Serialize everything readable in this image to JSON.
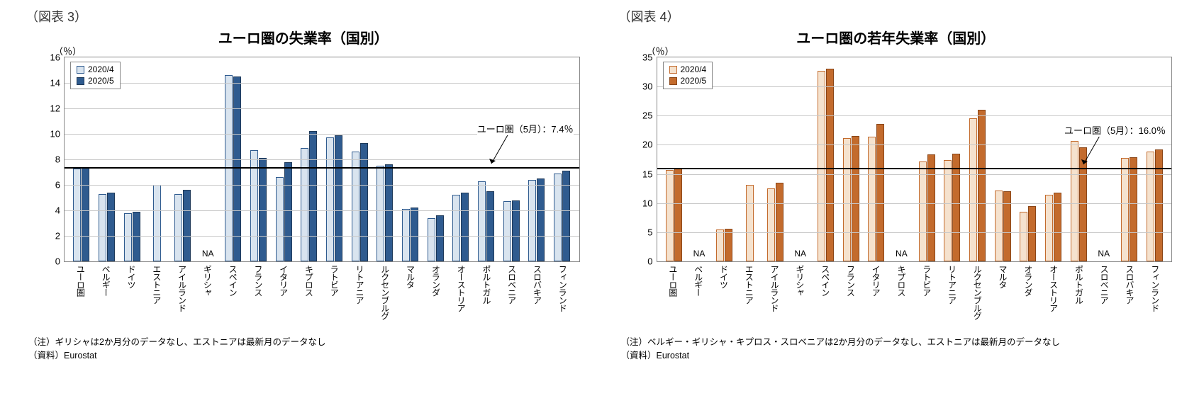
{
  "chart3": {
    "fig_label": "（図表 3）",
    "title": "ユーロ圏の失業率（国別）",
    "y_unit": "（％）",
    "type": "bar",
    "ylim": [
      0,
      16
    ],
    "ytick_step": 2,
    "yticks": [
      0,
      2,
      4,
      6,
      8,
      10,
      12,
      14,
      16
    ],
    "legend": [
      {
        "label": "2020/4",
        "fill": "#d9e4ef",
        "border": "#2f5b8f"
      },
      {
        "label": "2020/5",
        "fill": "#2f5b8f",
        "border": "#1f3a5a"
      }
    ],
    "reference": {
      "value": 7.4,
      "label": "ユーロ圏（5月）：7.4％"
    },
    "categories": [
      "ユーロ圏",
      "ベルギー",
      "ドイツ",
      "エストニア",
      "アイルランド",
      "ギリシャ",
      "スペイン",
      "フランス",
      "イタリア",
      "キプロス",
      "ラトビア",
      "リトアニア",
      "ルクセンブルグ",
      "マルタ",
      "オランダ",
      "オーストリア",
      "ポルトガル",
      "スロベニア",
      "スロバキア",
      "フィンランド"
    ],
    "series1": [
      7.3,
      5.3,
      3.8,
      6.0,
      5.3,
      null,
      14.6,
      8.7,
      6.6,
      8.9,
      9.7,
      8.6,
      7.5,
      4.1,
      3.4,
      5.2,
      6.3,
      4.7,
      6.4,
      6.9
    ],
    "series2": [
      7.4,
      5.4,
      3.9,
      null,
      5.6,
      null,
      14.5,
      8.1,
      7.8,
      10.2,
      9.9,
      9.3,
      7.6,
      4.2,
      3.6,
      5.4,
      5.5,
      4.8,
      6.5,
      7.1
    ],
    "na_indices": [
      5
    ],
    "note": "（注）ギリシャは2か月分のデータなし、エストニアは最新月のデータなし",
    "source": "（資料）Eurostat",
    "colors": {
      "grid": "#c8c8c8",
      "axis": "#888888",
      "ref": "#000000",
      "bg": "#ffffff"
    }
  },
  "chart4": {
    "fig_label": "（図表 4）",
    "title": "ユーロ圏の若年失業率（国別）",
    "y_unit": "（％）",
    "type": "bar",
    "ylim": [
      0,
      35
    ],
    "ytick_step": 5,
    "yticks": [
      0,
      5,
      10,
      15,
      20,
      25,
      30,
      35
    ],
    "legend": [
      {
        "label": "2020/4",
        "fill": "#f5e2ce",
        "border": "#c36b2d"
      },
      {
        "label": "2020/5",
        "fill": "#c36b2d",
        "border": "#8a4618"
      }
    ],
    "reference": {
      "value": 16.0,
      "label": "ユーロ圏（5月）：16.0％"
    },
    "categories": [
      "ユーロ圏",
      "ベルギー",
      "ドイツ",
      "エストニア",
      "アイルランド",
      "ギリシャ",
      "スペイン",
      "フランス",
      "イタリア",
      "キプロス",
      "ラトビア",
      "リトアニア",
      "ルクセンブルグ",
      "マルタ",
      "オランダ",
      "オーストリア",
      "ポルトガル",
      "スロベニア",
      "スロバキア",
      "フィンランド"
    ],
    "series1": [
      15.7,
      null,
      5.5,
      13.1,
      12.5,
      null,
      32.7,
      21.1,
      21.4,
      null,
      17.1,
      17.4,
      24.6,
      12.2,
      8.5,
      11.4,
      20.7,
      null,
      17.7,
      18.8
    ],
    "series2": [
      16.0,
      null,
      5.6,
      null,
      13.5,
      null,
      33.0,
      21.5,
      23.6,
      null,
      18.4,
      18.5,
      26.0,
      12.0,
      9.5,
      11.8,
      19.6,
      null,
      17.9,
      19.2
    ],
    "na_indices": [
      1,
      5,
      9,
      17
    ],
    "note": "（注）ベルギー・ギリシャ・キプロス・スロベニアは2か月分のデータなし、エストニアは最新月のデータなし",
    "source": "（資料）Eurostat",
    "colors": {
      "grid": "#c8c8c8",
      "axis": "#888888",
      "ref": "#000000",
      "bg": "#ffffff"
    }
  }
}
